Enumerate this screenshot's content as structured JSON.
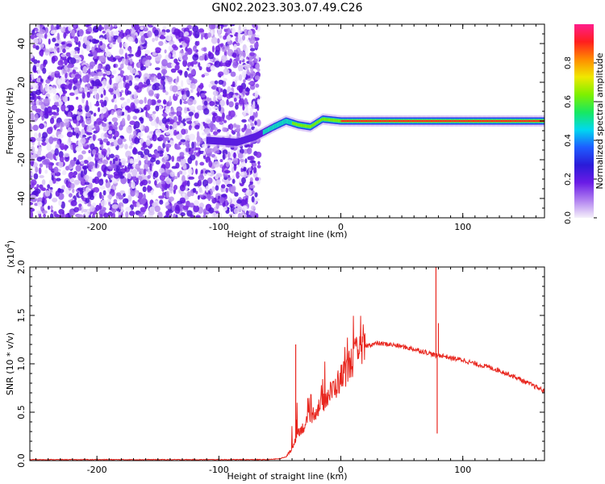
{
  "title": "GN02.2023.303.07.49.C26",
  "chart_data": [
    {
      "type": "heatmap",
      "xlabel": "Height of straight line (km)",
      "ylabel": "Frequency (Hz)",
      "xlim": [
        -255,
        167
      ],
      "ylim": [
        -50,
        50
      ],
      "x_ticks": [
        -200,
        -100,
        0,
        100
      ],
      "y_ticks": [
        -40,
        -20,
        0,
        20,
        40
      ],
      "colorbar": {
        "label": "Normalized spectral amplitude",
        "range": [
          0.0,
          1.0
        ],
        "ticks": [
          "0.0",
          "0.2",
          "0.4",
          "0.6",
          "0.8"
        ],
        "colormap": [
          "#f5f0fa",
          "#b080f0",
          "#6a1be6",
          "#2a1bd8",
          "#1e5cff",
          "#00d8f0",
          "#18e860",
          "#7ef000",
          "#f0e800",
          "#ff8c00",
          "#ff1e1e",
          "#ff1e8c"
        ]
      },
      "signal_track": [
        {
          "x": -255,
          "y": -10
        },
        {
          "x": -110,
          "y": -10
        },
        {
          "x": -85,
          "y": -11
        },
        {
          "x": -70,
          "y": -8
        },
        {
          "x": -55,
          "y": -3
        },
        {
          "x": -45,
          "y": 0
        },
        {
          "x": -35,
          "y": -2
        },
        {
          "x": -25,
          "y": -3
        },
        {
          "x": -15,
          "y": 1
        },
        {
          "x": 0,
          "y": 0
        },
        {
          "x": 167,
          "y": 0
        }
      ],
      "noise_region_x": [
        -255,
        -67
      ]
    },
    {
      "type": "line",
      "xlabel": "Height of straight line (km)",
      "ylabel": "SNR (10 * v/v)",
      "y_multiplier": "(x10",
      "y_multiplier_exp": "4",
      "xlim": [
        -255,
        167
      ],
      "ylim": [
        0,
        2.0
      ],
      "x_ticks": [
        -200,
        -100,
        0,
        100
      ],
      "y_ticks": [
        "0.0",
        "0.5",
        "1.0",
        "1.5",
        "2.0"
      ],
      "color": "#e8261e",
      "series": [
        {
          "x": [
            -255,
            -200,
            -150,
            -100,
            -60,
            -50,
            -45,
            -40,
            -35,
            -30,
            -25,
            -20,
            -15,
            -10,
            -5,
            0,
            5,
            10,
            15,
            20,
            25,
            30,
            40,
            50,
            60,
            70,
            75,
            78,
            80,
            85,
            90,
            100,
            110,
            120,
            130,
            140,
            150,
            160,
            167
          ],
          "y": [
            0.01,
            0.01,
            0.01,
            0.01,
            0.01,
            0.02,
            0.04,
            0.12,
            0.3,
            0.35,
            0.45,
            0.52,
            0.6,
            0.68,
            0.75,
            0.85,
            0.95,
            1.05,
            1.12,
            1.18,
            1.2,
            1.21,
            1.2,
            1.18,
            1.15,
            1.12,
            1.1,
            1.08,
            1.09,
            1.08,
            1.06,
            1.04,
            1.0,
            0.97,
            0.93,
            0.88,
            0.82,
            0.76,
            0.72
          ]
        }
      ],
      "spikes": [
        {
          "x": -37,
          "y": 1.2
        },
        {
          "x": 78,
          "y": 2.0
        },
        {
          "x": 79,
          "y": 0.28
        },
        {
          "x": 80,
          "y": 1.42
        }
      ]
    }
  ]
}
